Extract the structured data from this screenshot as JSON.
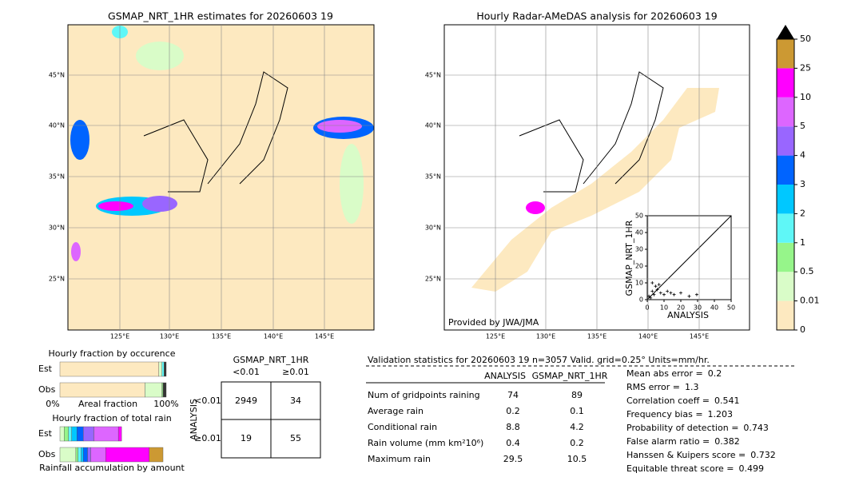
{
  "left_map": {
    "title": "GSMAP_NRT_1HR estimates for 20260603 19",
    "lat_labels": [
      "45°N",
      "40°N",
      "35°N",
      "30°N",
      "25°N"
    ],
    "lon_labels": [
      "125°E",
      "130°E",
      "135°E",
      "140°E",
      "145°E"
    ]
  },
  "right_map": {
    "title": "Hourly Radar-AMeDAS analysis for 20260603 19",
    "lat_labels": [
      "45°N",
      "40°N",
      "35°N",
      "30°N",
      "25°N"
    ],
    "lon_labels": [
      "125°E",
      "130°E",
      "135°E",
      "140°E",
      "145°E"
    ],
    "credit": "Provided by JWA/JMA",
    "inset": {
      "type": "scatter",
      "xlabel": "ANALYSIS",
      "ylabel": "GSMAP_NRT_1HR",
      "xlim": [
        0,
        50
      ],
      "ylim": [
        0,
        50
      ],
      "xticks": [
        0,
        10,
        20,
        30,
        40,
        50
      ],
      "yticks": [
        0,
        10,
        20,
        30,
        40,
        50
      ],
      "x": [
        1,
        2,
        3,
        4,
        5,
        6,
        8,
        10,
        12,
        14,
        16,
        20,
        25,
        29.5,
        3,
        7
      ],
      "y": [
        2,
        1,
        5,
        3,
        8,
        6,
        4,
        3,
        5,
        4,
        3,
        4,
        2,
        3,
        10,
        9
      ]
    }
  },
  "colorbar": {
    "levels": [
      0,
      0.01,
      0.5,
      1,
      2,
      3,
      4,
      5,
      10,
      25,
      50
    ],
    "colors": [
      "#fde9c0",
      "#d9fcc8",
      "#96f58a",
      "#5ff7f7",
      "#00c8ff",
      "#0064ff",
      "#9966ff",
      "#dd66ff",
      "#ff00ff",
      "#cc9933"
    ]
  },
  "occurrence": {
    "title": "Hourly fraction by occurence",
    "bars": [
      {
        "label": "Est",
        "fractions": [
          93,
          3,
          2,
          2
        ],
        "colors": [
          "#fde9c0",
          "#d9fcc8",
          "#5ff7f7",
          "#333333"
        ]
      },
      {
        "label": "Obs",
        "fractions": [
          80,
          16,
          1,
          3
        ],
        "colors": [
          "#fde9c0",
          "#d9fcc8",
          "#96f58a",
          "#333333"
        ]
      }
    ],
    "xlabels": [
      "0%",
      "Areal fraction",
      "100%"
    ]
  },
  "total_rain": {
    "title": "Hourly fraction of total rain",
    "bars": [
      {
        "label": "Est",
        "fractions": [
          4,
          4,
          3,
          5,
          6,
          10,
          23,
          3
        ],
        "colors": [
          "#d9fcc8",
          "#96f58a",
          "#5ff7f7",
          "#00c8ff",
          "#0064ff",
          "#9966ff",
          "#dd66ff",
          "#ff00ff"
        ]
      },
      {
        "label": "Obs",
        "fractions": [
          15,
          2,
          3,
          2,
          4,
          3,
          14,
          41,
          13
        ],
        "colors": [
          "#d9fcc8",
          "#96f58a",
          "#5ff7f7",
          "#00c8ff",
          "#0064ff",
          "#9966ff",
          "#dd66ff",
          "#ff00ff",
          "#cc9933"
        ]
      }
    ],
    "xlabel": "Rainfall accumulation by amount"
  },
  "contingency": {
    "title": "GSMAP_NRT_1HR",
    "cols": [
      "<0.01",
      "≥0.01"
    ],
    "ylabel": "ANALYSIS",
    "rows": [
      "<0.01",
      "≥0.01"
    ],
    "cells": [
      [
        2949,
        34
      ],
      [
        19,
        55
      ]
    ]
  },
  "validation": {
    "header": "Validation statistics for 20260603 19  n=3057 Valid. grid=0.25° Units=mm/hr.",
    "columns": [
      "ANALYSIS",
      "GSMAP_NRT_1HR"
    ],
    "rows": [
      {
        "label": "Num of gridpoints raining",
        "values": [
          74,
          89
        ]
      },
      {
        "label": "Average rain",
        "values": [
          0.2,
          0.1
        ]
      },
      {
        "label": "Conditional rain",
        "values": [
          8.8,
          4.2
        ]
      },
      {
        "label": "Rain volume (mm km²10⁶)",
        "values": [
          0.4,
          0.2
        ]
      },
      {
        "label": "Maximum rain",
        "values": [
          29.5,
          10.5
        ]
      }
    ],
    "scores": [
      {
        "label": "Mean abs error =",
        "value": 0.2
      },
      {
        "label": "RMS error =",
        "value": 1.3
      },
      {
        "label": "Correlation coeff =",
        "value": 0.541
      },
      {
        "label": "Frequency bias =",
        "value": 1.203
      },
      {
        "label": "Probability of detection =",
        "value": 0.743
      },
      {
        "label": "False alarm ratio =",
        "value": 0.382
      },
      {
        "label": "Hanssen & Kuipers score =",
        "value": 0.732
      },
      {
        "label": "Equitable threat score =",
        "value": 0.499
      }
    ]
  }
}
